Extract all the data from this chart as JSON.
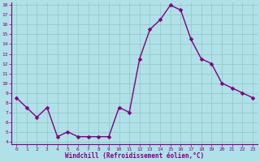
{
  "x": [
    0,
    1,
    2,
    3,
    4,
    5,
    6,
    7,
    8,
    9,
    10,
    11,
    12,
    13,
    14,
    15,
    16,
    17,
    18,
    19,
    20,
    21,
    22,
    23
  ],
  "y": [
    8.5,
    7.5,
    6.5,
    7.5,
    4.5,
    5.0,
    4.5,
    4.5,
    4.5,
    4.5,
    7.5,
    7.0,
    12.5,
    15.5,
    16.5,
    18.0,
    17.5,
    14.5,
    12.5,
    12.0,
    10.0,
    9.5,
    9.0,
    8.5
  ],
  "line_color": "#800080",
  "marker_color": "#800080",
  "background_color": "#b0e0e8",
  "grid_color": "#90c8c0",
  "xlabel": "Windchill (Refroidissement éolien,°C)",
  "ylim": [
    4,
    18
  ],
  "xlim": [
    -0.5,
    23.5
  ],
  "yticks": [
    4,
    5,
    6,
    7,
    8,
    9,
    10,
    11,
    12,
    13,
    14,
    15,
    16,
    17,
    18
  ],
  "xticks": [
    0,
    1,
    2,
    3,
    4,
    5,
    6,
    7,
    8,
    9,
    10,
    11,
    12,
    13,
    14,
    15,
    16,
    17,
    18,
    19,
    20,
    21,
    22,
    23
  ],
  "tick_label_color": "#800080",
  "spine_color": "#800080",
  "marker_size": 2.5,
  "line_width": 1.0
}
